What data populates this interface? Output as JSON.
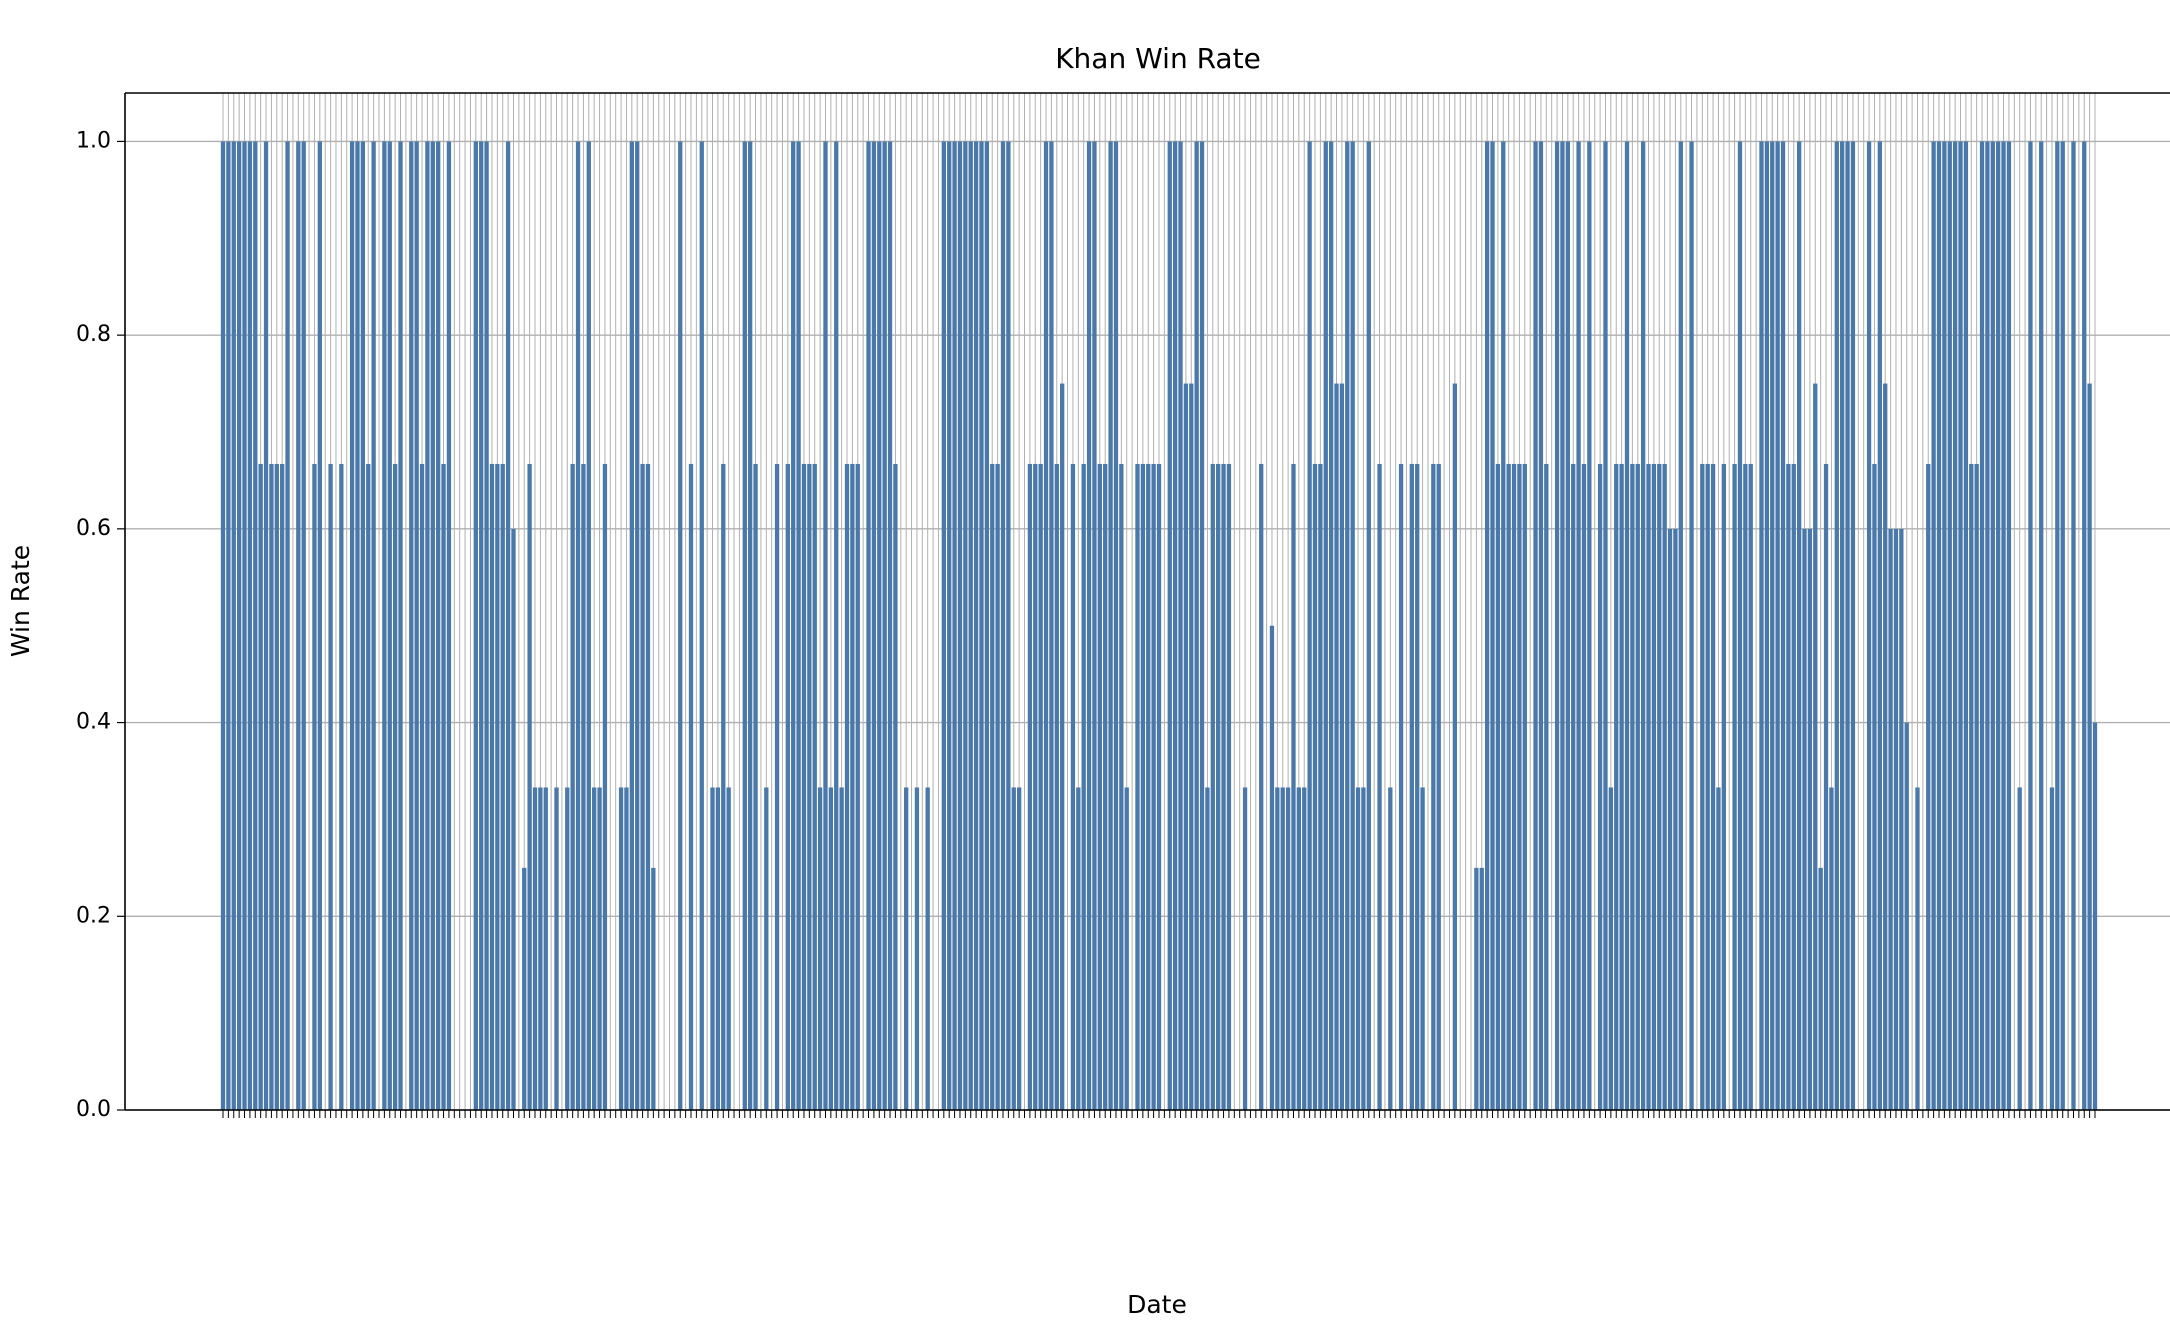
{
  "chart_data": {
    "type": "bar",
    "title": "Khan Win Rate",
    "x_label": "Date",
    "y_label": "Win Rate",
    "color": "#4a78a8",
    "grid": true,
    "ylim": [
      0,
      1.05
    ],
    "yticks": [
      {
        "value": 0,
        "label": "0.0"
      },
      0.2,
      0.4,
      0.6,
      0.8,
      {
        "value": 1,
        "label": "1.0"
      }
    ],
    "categories": [
      null,
      null,
      null,
      null,
      null,
      null,
      null,
      null,
      null,
      null,
      null,
      null,
      null,
      null,
      null,
      null,
      null,
      null,
      null,
      null,
      null,
      null,
      null,
      null,
      null,
      null,
      null,
      null,
      null,
      null,
      null,
      null,
      null,
      null,
      null,
      null,
      null,
      null,
      null,
      null,
      null,
      null,
      null,
      null,
      null,
      null,
      null,
      null,
      null,
      null,
      null,
      null,
      null,
      null,
      null,
      null,
      null,
      null,
      null,
      null,
      null,
      null,
      null,
      null,
      null,
      null,
      null,
      null,
      null,
      null,
      null,
      null,
      null,
      null,
      null,
      null,
      null,
      null,
      null,
      null,
      null,
      null,
      null,
      null,
      null,
      null,
      null,
      null,
      null,
      null,
      null,
      null,
      null,
      null,
      null,
      null,
      null,
      null,
      null,
      null,
      null,
      null,
      null,
      null,
      null,
      null,
      null,
      null,
      null,
      null,
      null,
      null,
      null,
      null,
      null,
      null,
      null,
      null,
      null,
      null,
      null,
      null,
      null,
      null,
      null,
      null,
      null,
      null,
      null,
      null,
      null,
      null,
      null,
      null,
      null,
      null,
      null,
      null,
      null,
      null,
      null,
      null,
      null,
      null,
      null,
      null,
      null,
      null,
      null,
      null,
      null,
      null,
      null,
      null,
      null,
      null,
      null,
      null,
      null,
      null,
      null,
      null,
      null,
      null,
      null,
      null,
      null,
      null,
      null,
      null,
      null,
      null,
      null,
      null,
      null,
      null,
      null,
      null,
      null,
      null,
      null,
      null,
      null,
      null,
      null,
      null,
      null,
      null,
      null,
      null,
      null,
      null,
      null,
      null,
      null,
      null,
      null,
      null,
      null,
      null,
      null,
      null,
      null,
      null,
      null,
      null,
      null,
      null,
      null,
      null,
      null,
      null,
      null,
      null,
      null,
      null,
      null,
      null,
      null,
      null,
      null,
      null,
      null,
      null,
      null,
      null,
      null,
      null,
      null,
      null,
      null,
      null,
      null,
      null,
      null,
      null,
      null,
      null,
      null,
      null,
      null,
      null,
      null,
      null,
      null,
      null,
      null,
      null,
      null,
      null,
      null,
      null,
      null,
      null,
      null,
      null,
      null,
      null,
      null,
      null,
      null,
      null,
      null,
      null,
      null,
      null,
      null,
      null,
      null,
      null,
      null,
      null,
      null,
      null,
      null,
      null,
      null,
      null,
      null,
      null,
      null,
      null,
      null,
      null,
      null,
      null,
      null,
      null,
      null,
      null,
      null,
      null,
      null,
      null,
      null,
      null,
      null,
      null,
      null,
      null,
      null,
      null,
      null,
      null,
      null,
      null,
      null,
      null,
      null,
      null,
      null,
      null,
      null,
      null,
      null,
      null,
      null,
      null,
      null,
      null,
      null,
      null,
      null,
      null,
      null,
      null,
      null,
      null,
      null,
      null,
      null,
      null,
      null,
      null,
      null,
      null,
      null,
      null,
      null,
      null,
      null,
      null,
      null,
      null,
      null,
      null,
      null,
      null,
      null
    ],
    "values": [
      1,
      1,
      1,
      1,
      1,
      1,
      1,
      0.667,
      1,
      0.667,
      0.667,
      0.667,
      1,
      0,
      1,
      1,
      0,
      0.667,
      1,
      0,
      0.667,
      0,
      0.667,
      0,
      1,
      1,
      1,
      0.667,
      1,
      0,
      1,
      1,
      0.667,
      1,
      0,
      1,
      1,
      0.667,
      1,
      1,
      1,
      0.667,
      1,
      0,
      0,
      0,
      0,
      1,
      1,
      1,
      0.667,
      0.667,
      0.667,
      1,
      0.6,
      0,
      0.25,
      0.667,
      0.333,
      0.333,
      0.333,
      0,
      0.333,
      0,
      0.333,
      0.667,
      1,
      0.667,
      1,
      0.333,
      0.333,
      0.667,
      0,
      0,
      0.333,
      0.333,
      1,
      1,
      0.667,
      0.667,
      0.25,
      0,
      0,
      0,
      0,
      1,
      0,
      0.667,
      0,
      1,
      0,
      0.333,
      0.333,
      0.667,
      0.333,
      0,
      0,
      1,
      1,
      0.667,
      0,
      0.333,
      0,
      0.667,
      0,
      0.667,
      1,
      1,
      0.667,
      0.667,
      0.667,
      0.333,
      1,
      0.333,
      1,
      0.333,
      0.667,
      0.667,
      0.667,
      0,
      1,
      1,
      1,
      1,
      1,
      0.667,
      0,
      0.333,
      0,
      0.333,
      0,
      0.333,
      0,
      0,
      1,
      1,
      1,
      1,
      1,
      1,
      1,
      1,
      1,
      0.667,
      0.667,
      1,
      1,
      0.333,
      0.333,
      0,
      0.667,
      0.667,
      0.667,
      1,
      1,
      0.667,
      0.75,
      0,
      0.667,
      0.333,
      0.667,
      1,
      1,
      0.667,
      0.667,
      1,
      1,
      0.667,
      0.333,
      0,
      0.667,
      0.667,
      0.667,
      0.667,
      0.667,
      0,
      1,
      1,
      1,
      0.75,
      0.75,
      1,
      1,
      0.333,
      0.667,
      0.667,
      0.667,
      0.667,
      0,
      0,
      0.333,
      0,
      0,
      0.667,
      0,
      0.5,
      0.333,
      0.333,
      0.333,
      0.667,
      0.333,
      0.333,
      1,
      0.667,
      0.667,
      1,
      1,
      0.75,
      0.75,
      1,
      1,
      0.333,
      0.333,
      1,
      0,
      0.667,
      0,
      0.333,
      0,
      0.667,
      0,
      0.667,
      0.667,
      0.333,
      0,
      0.667,
      0.667,
      0,
      0,
      0.75,
      0,
      0,
      0,
      0.25,
      0.25,
      1,
      1,
      0.667,
      1,
      0.667,
      0.667,
      0.667,
      0.667,
      0,
      1,
      1,
      0.667,
      0,
      1,
      1,
      1,
      0.667,
      1,
      0.667,
      1,
      0,
      0.667,
      1,
      0.333,
      0.667,
      0.667,
      1,
      0.667,
      0.667,
      1,
      0.667,
      0.667,
      0.667,
      0.667,
      0.6,
      0.6,
      1,
      0,
      1,
      0,
      0.667,
      0.667,
      0.667,
      0.333,
      0.667,
      0,
      0.667,
      1,
      0.667,
      0.667,
      0,
      1,
      1,
      1,
      1,
      1,
      0.667,
      0.667,
      1,
      0.6,
      0.6,
      0.75,
      0.25,
      0.667,
      0.333,
      1,
      1,
      1,
      1,
      0,
      0,
      1,
      0.667,
      1,
      0.75,
      0.6,
      0.6,
      0.6,
      0.4,
      0,
      0.333,
      0,
      0.667,
      1,
      1,
      1,
      1,
      1,
      1,
      1,
      0.667,
      0.667,
      1,
      1,
      1,
      1,
      1,
      1,
      0,
      0.333,
      0,
      1,
      0,
      1,
      0,
      0.333,
      1,
      1,
      0,
      1,
      0,
      1,
      0.75,
      0.4
    ]
  }
}
